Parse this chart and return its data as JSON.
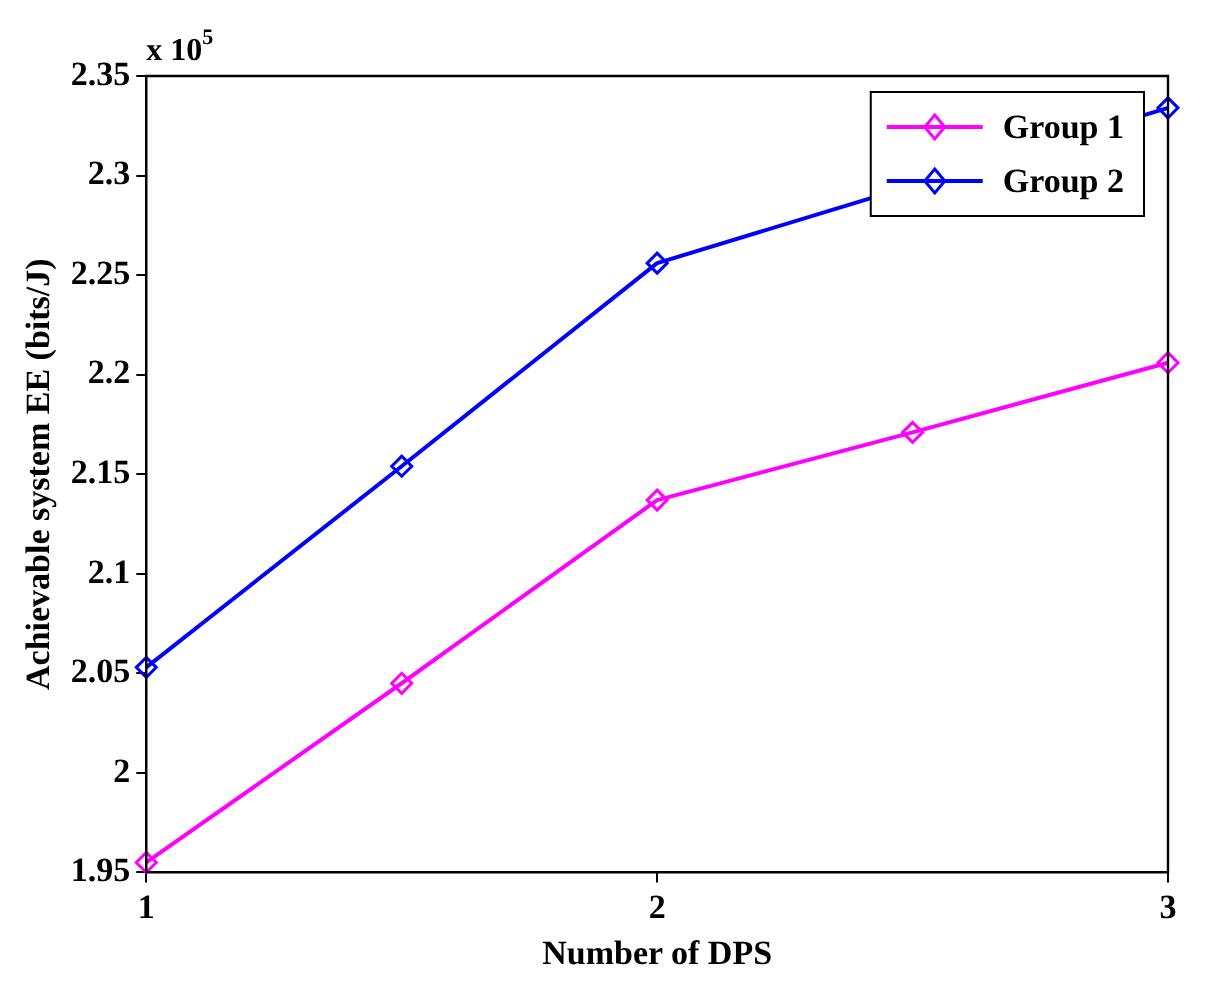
{
  "chart_data": {
    "type": "line",
    "xlabel": "Number of DPS",
    "ylabel": "Achievable system EE (bits/J)",
    "annotations": [
      "x 10$^{5}$"
    ],
    "x": [
      1,
      1.5,
      2,
      2.5,
      3
    ],
    "xlim": [
      1,
      3
    ],
    "xticks": [
      1,
      2,
      3
    ],
    "ylim": [
      1.95,
      2.35
    ],
    "yticks": [
      1.95,
      2,
      2.05,
      2.1,
      2.15,
      2.2,
      2.25,
      2.3,
      2.35
    ],
    "grid": false,
    "legend": "top right",
    "marker": "diamond",
    "line_style": "solid",
    "series": [
      {
        "name": "Group 1",
        "color": "#ff00ff",
        "values": [
          1.955,
          2.045,
          2.137,
          2.171,
          2.206
        ]
      },
      {
        "name": "Group 2",
        "color": "#0000ff",
        "values": [
          2.053,
          2.154,
          2.256,
          null,
          2.334
        ]
      }
    ]
  }
}
